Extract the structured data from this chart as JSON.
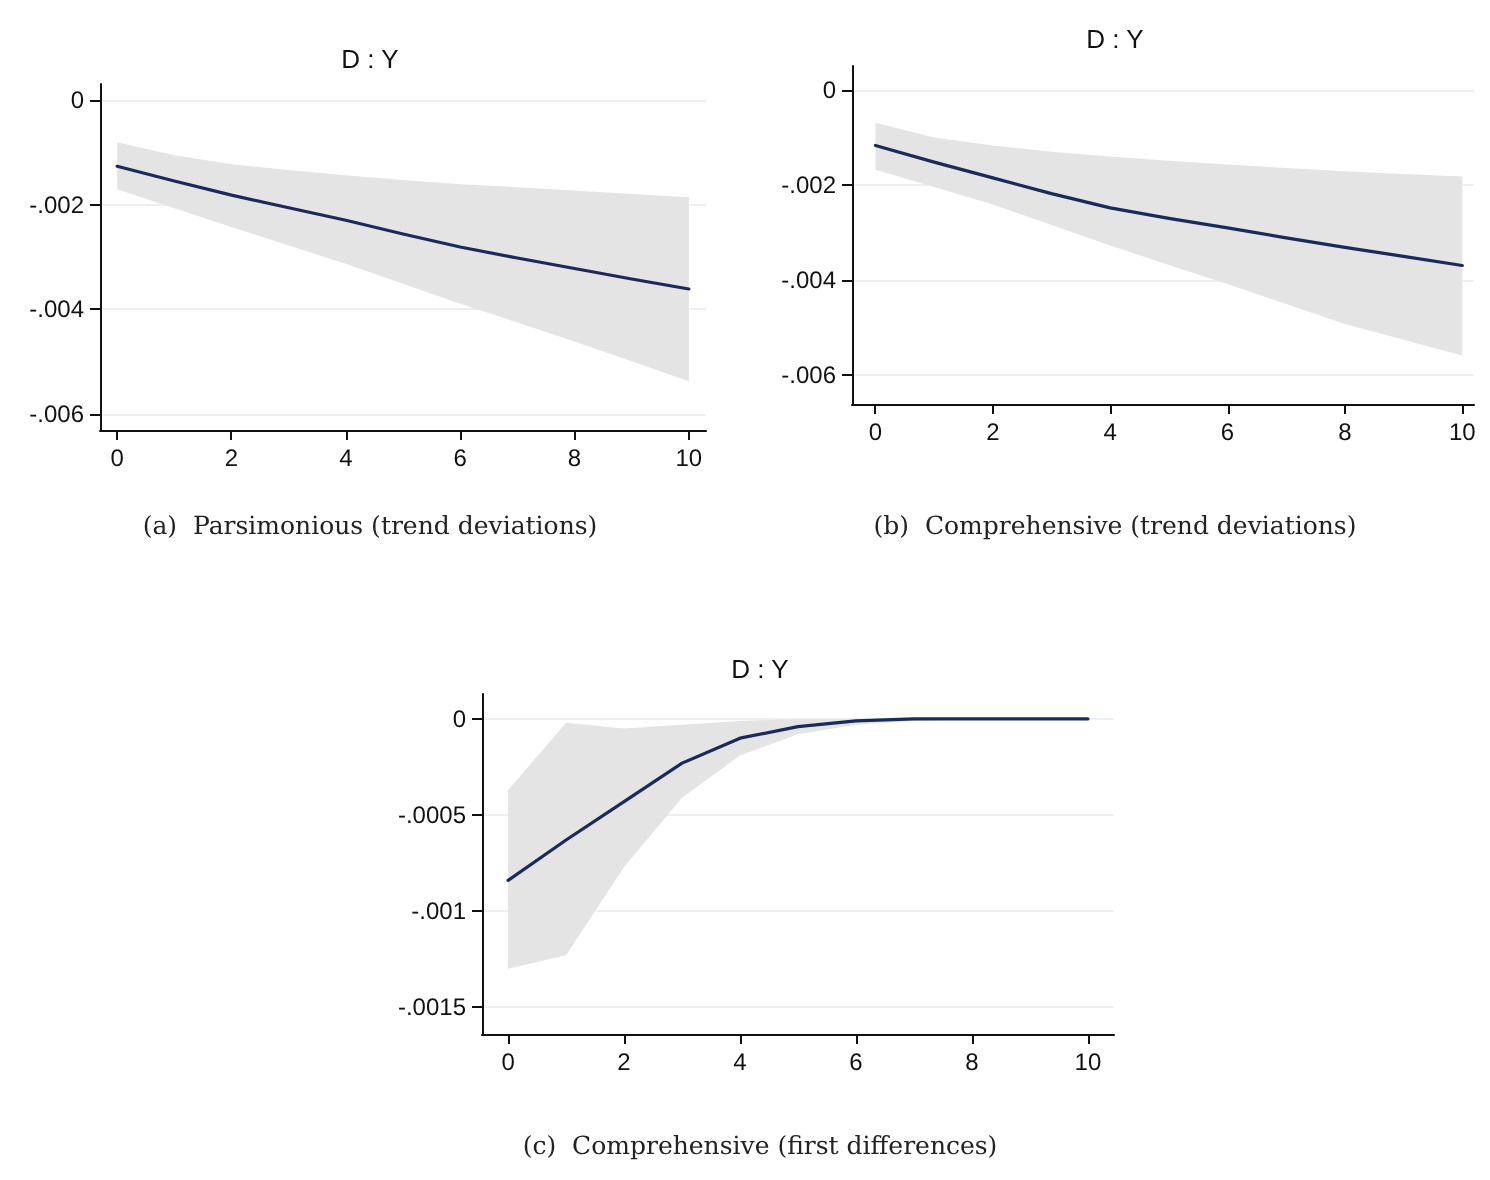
{
  "chart_data": [
    {
      "type": "line",
      "title": "D : Y",
      "annotations": [
        "(a)  Parsimonious (trend deviations)"
      ],
      "x": [
        0,
        1,
        2,
        3,
        4,
        5,
        6,
        7,
        8,
        9,
        10
      ],
      "xlim": [
        -0.3,
        10.3
      ],
      "xticks": [
        0,
        2,
        4,
        6,
        8,
        10
      ],
      "ylim": [
        -0.0063,
        0.0003
      ],
      "yticks": [
        {
          "value": 0,
          "label": "0"
        },
        {
          "value": -0.002,
          "label": "-.002"
        },
        {
          "value": -0.004,
          "label": "-.004"
        },
        {
          "value": -0.006,
          "label": "-.006"
        }
      ],
      "grid": "y",
      "marker": "none",
      "line_style": "solid",
      "series": [
        {
          "color": "#1a2a5a",
          "values": [
            -0.00127,
            -0.00155,
            -0.00182,
            -0.00206,
            -0.0023,
            -0.00256,
            -0.00281,
            -0.00302,
            -0.00322,
            -0.00342,
            -0.00361
          ],
          "lower": [
            -0.00171,
            -0.00207,
            -0.00243,
            -0.00278,
            -0.00313,
            -0.00351,
            -0.00389,
            -0.00425,
            -0.00461,
            -0.00499,
            -0.00537
          ],
          "upper": [
            -0.00081,
            -0.00106,
            -0.00123,
            -0.00134,
            -0.00144,
            -0.00153,
            -0.00161,
            -0.00167,
            -0.00173,
            -0.0018,
            -0.00186
          ]
        }
      ]
    },
    {
      "type": "line",
      "title": "D : Y",
      "annotations": [
        "(b)  Comprehensive (trend deviations)"
      ],
      "x": [
        0,
        1,
        2,
        3,
        4,
        5,
        6,
        7,
        8,
        9,
        10
      ],
      "xlim": [
        -0.4,
        10.2
      ],
      "xticks": [
        0,
        2,
        4,
        6,
        8,
        10
      ],
      "ylim": [
        -0.0066,
        0.0005
      ],
      "yticks": [
        {
          "value": 0,
          "label": "0"
        },
        {
          "value": -0.002,
          "label": "-.002"
        },
        {
          "value": -0.004,
          "label": "-.004"
        },
        {
          "value": -0.006,
          "label": "-.006"
        }
      ],
      "grid": "y",
      "marker": "none",
      "line_style": "solid",
      "series": [
        {
          "color": "#1a2a5a",
          "values": [
            -0.00117,
            -0.00152,
            -0.00185,
            -0.00218,
            -0.00248,
            -0.0027,
            -0.0029,
            -0.00311,
            -0.00331,
            -0.0035,
            -0.00369
          ],
          "lower": [
            -0.00168,
            -0.00204,
            -0.00241,
            -0.00284,
            -0.00327,
            -0.00368,
            -0.00408,
            -0.0045,
            -0.00492,
            -0.00525,
            -0.00558
          ],
          "upper": [
            -0.00069,
            -0.001,
            -0.00117,
            -0.0013,
            -0.0014,
            -0.00149,
            -0.00157,
            -0.00164,
            -0.00171,
            -0.00177,
            -0.00182
          ]
        }
      ]
    },
    {
      "type": "line",
      "title": "D : Y",
      "annotations": [
        "(c)  Comprehensive (first differences)"
      ],
      "x": [
        0,
        1,
        2,
        3,
        4,
        5,
        6,
        7,
        8,
        9,
        10
      ],
      "xlim": [
        -0.45,
        10.45
      ],
      "xticks": [
        0,
        2,
        4,
        6,
        8,
        10
      ],
      "ylim": [
        -0.00164,
        0.00013
      ],
      "yticks": [
        {
          "value": 0,
          "label": "0"
        },
        {
          "value": -0.0005,
          "label": "-.0005"
        },
        {
          "value": -0.001,
          "label": "-.001"
        },
        {
          "value": -0.0015,
          "label": "-.0015"
        }
      ],
      "grid": "y",
      "marker": "none",
      "line_style": "solid",
      "series": [
        {
          "color": "#1a2a5a",
          "values": [
            -0.00084,
            -0.00063,
            -0.00043,
            -0.00023,
            -0.0001,
            -4e-05,
            -1e-05,
            0,
            0,
            0,
            0
          ],
          "lower": [
            -0.0013,
            -0.00123,
            -0.00077,
            -0.00041,
            -0.00019,
            -8e-05,
            -3e-05,
            -1e-05,
            0,
            0,
            0
          ],
          "upper": [
            -0.00037,
            -2e-05,
            -5e-05,
            -3e-05,
            -1e-05,
            0,
            0,
            0,
            0,
            0,
            0
          ]
        }
      ]
    }
  ]
}
